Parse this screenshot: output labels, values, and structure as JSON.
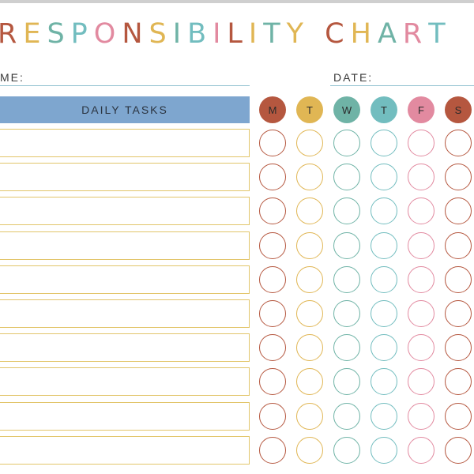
{
  "title": {
    "letters": [
      {
        "char": "R",
        "color": "#b5573f"
      },
      {
        "char": "E",
        "color": "#e0b654"
      },
      {
        "char": "S",
        "color": "#6fb3a6"
      },
      {
        "char": "P",
        "color": "#72bdbf"
      },
      {
        "char": "O",
        "color": "#e28aa0"
      },
      {
        "char": "N",
        "color": "#b5573f"
      },
      {
        "char": "S",
        "color": "#e0b654"
      },
      {
        "char": "I",
        "color": "#6fb3a6"
      },
      {
        "char": "B",
        "color": "#72bdbf"
      },
      {
        "char": "I",
        "color": "#e28aa0"
      },
      {
        "char": "L",
        "color": "#b5573f"
      },
      {
        "char": "I",
        "color": "#e0b654"
      },
      {
        "char": "T",
        "color": "#6fb3a6"
      },
      {
        "char": "Y",
        "color": "#e0b654"
      },
      {
        "char": " ",
        "color": "#ffffff"
      },
      {
        "char": "C",
        "color": "#b5573f"
      },
      {
        "char": "H",
        "color": "#e0b654"
      },
      {
        "char": "A",
        "color": "#6fb3a6"
      },
      {
        "char": "R",
        "color": "#e28aa0"
      },
      {
        "char": "T",
        "color": "#72bdbf"
      }
    ]
  },
  "fields": {
    "name_label": "ME:",
    "date_label": "DATE:"
  },
  "tasks": {
    "header": "DAILY TASKS",
    "row_count": 10
  },
  "days": [
    {
      "label": "M",
      "color": "#b5573f"
    },
    {
      "label": "T",
      "color": "#e0b654"
    },
    {
      "label": "W",
      "color": "#6fb3a6"
    },
    {
      "label": "T",
      "color": "#72bdbf"
    },
    {
      "label": "F",
      "color": "#e28aa0"
    },
    {
      "label": "S",
      "color": "#b5573f"
    }
  ],
  "colors": {
    "header_bg": "#7ea6cf",
    "row_border": "#e2c56a",
    "field_line": "#8fc0cf"
  }
}
